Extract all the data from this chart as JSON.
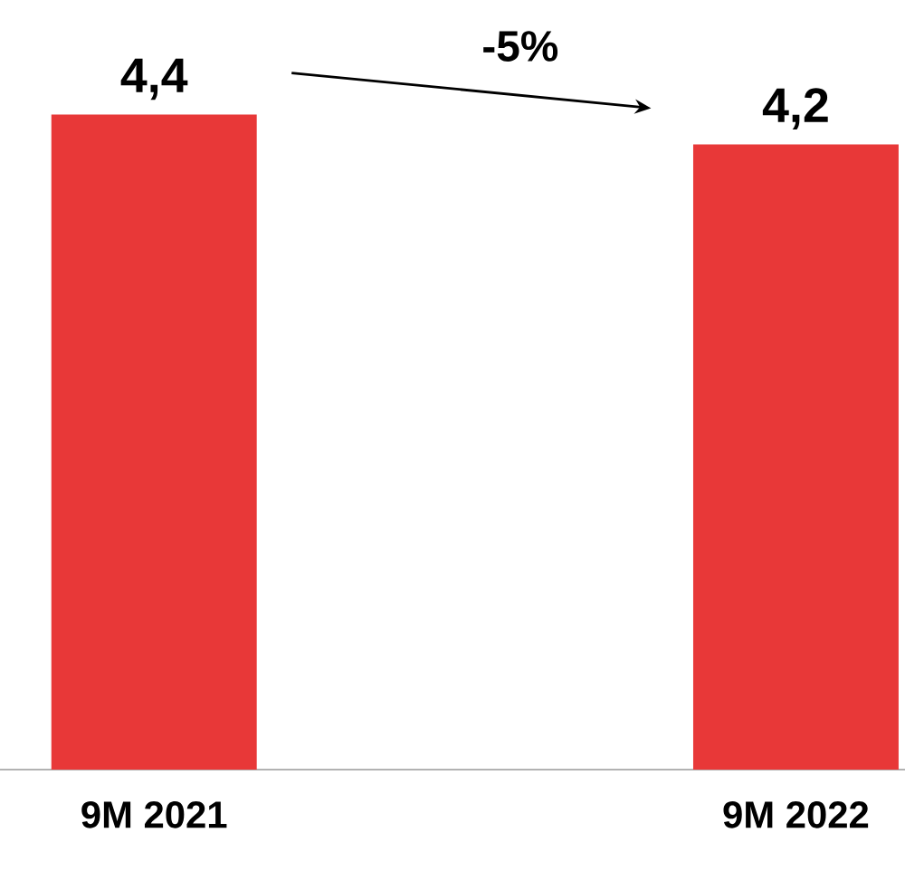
{
  "chart_data": {
    "type": "bar",
    "categories": [
      "9M 2021",
      "9M 2022"
    ],
    "values": [
      4.4,
      4.2
    ],
    "value_labels": [
      "4,4",
      "4,2"
    ],
    "color": "#e83838",
    "annotations": [
      "-5%"
    ]
  }
}
